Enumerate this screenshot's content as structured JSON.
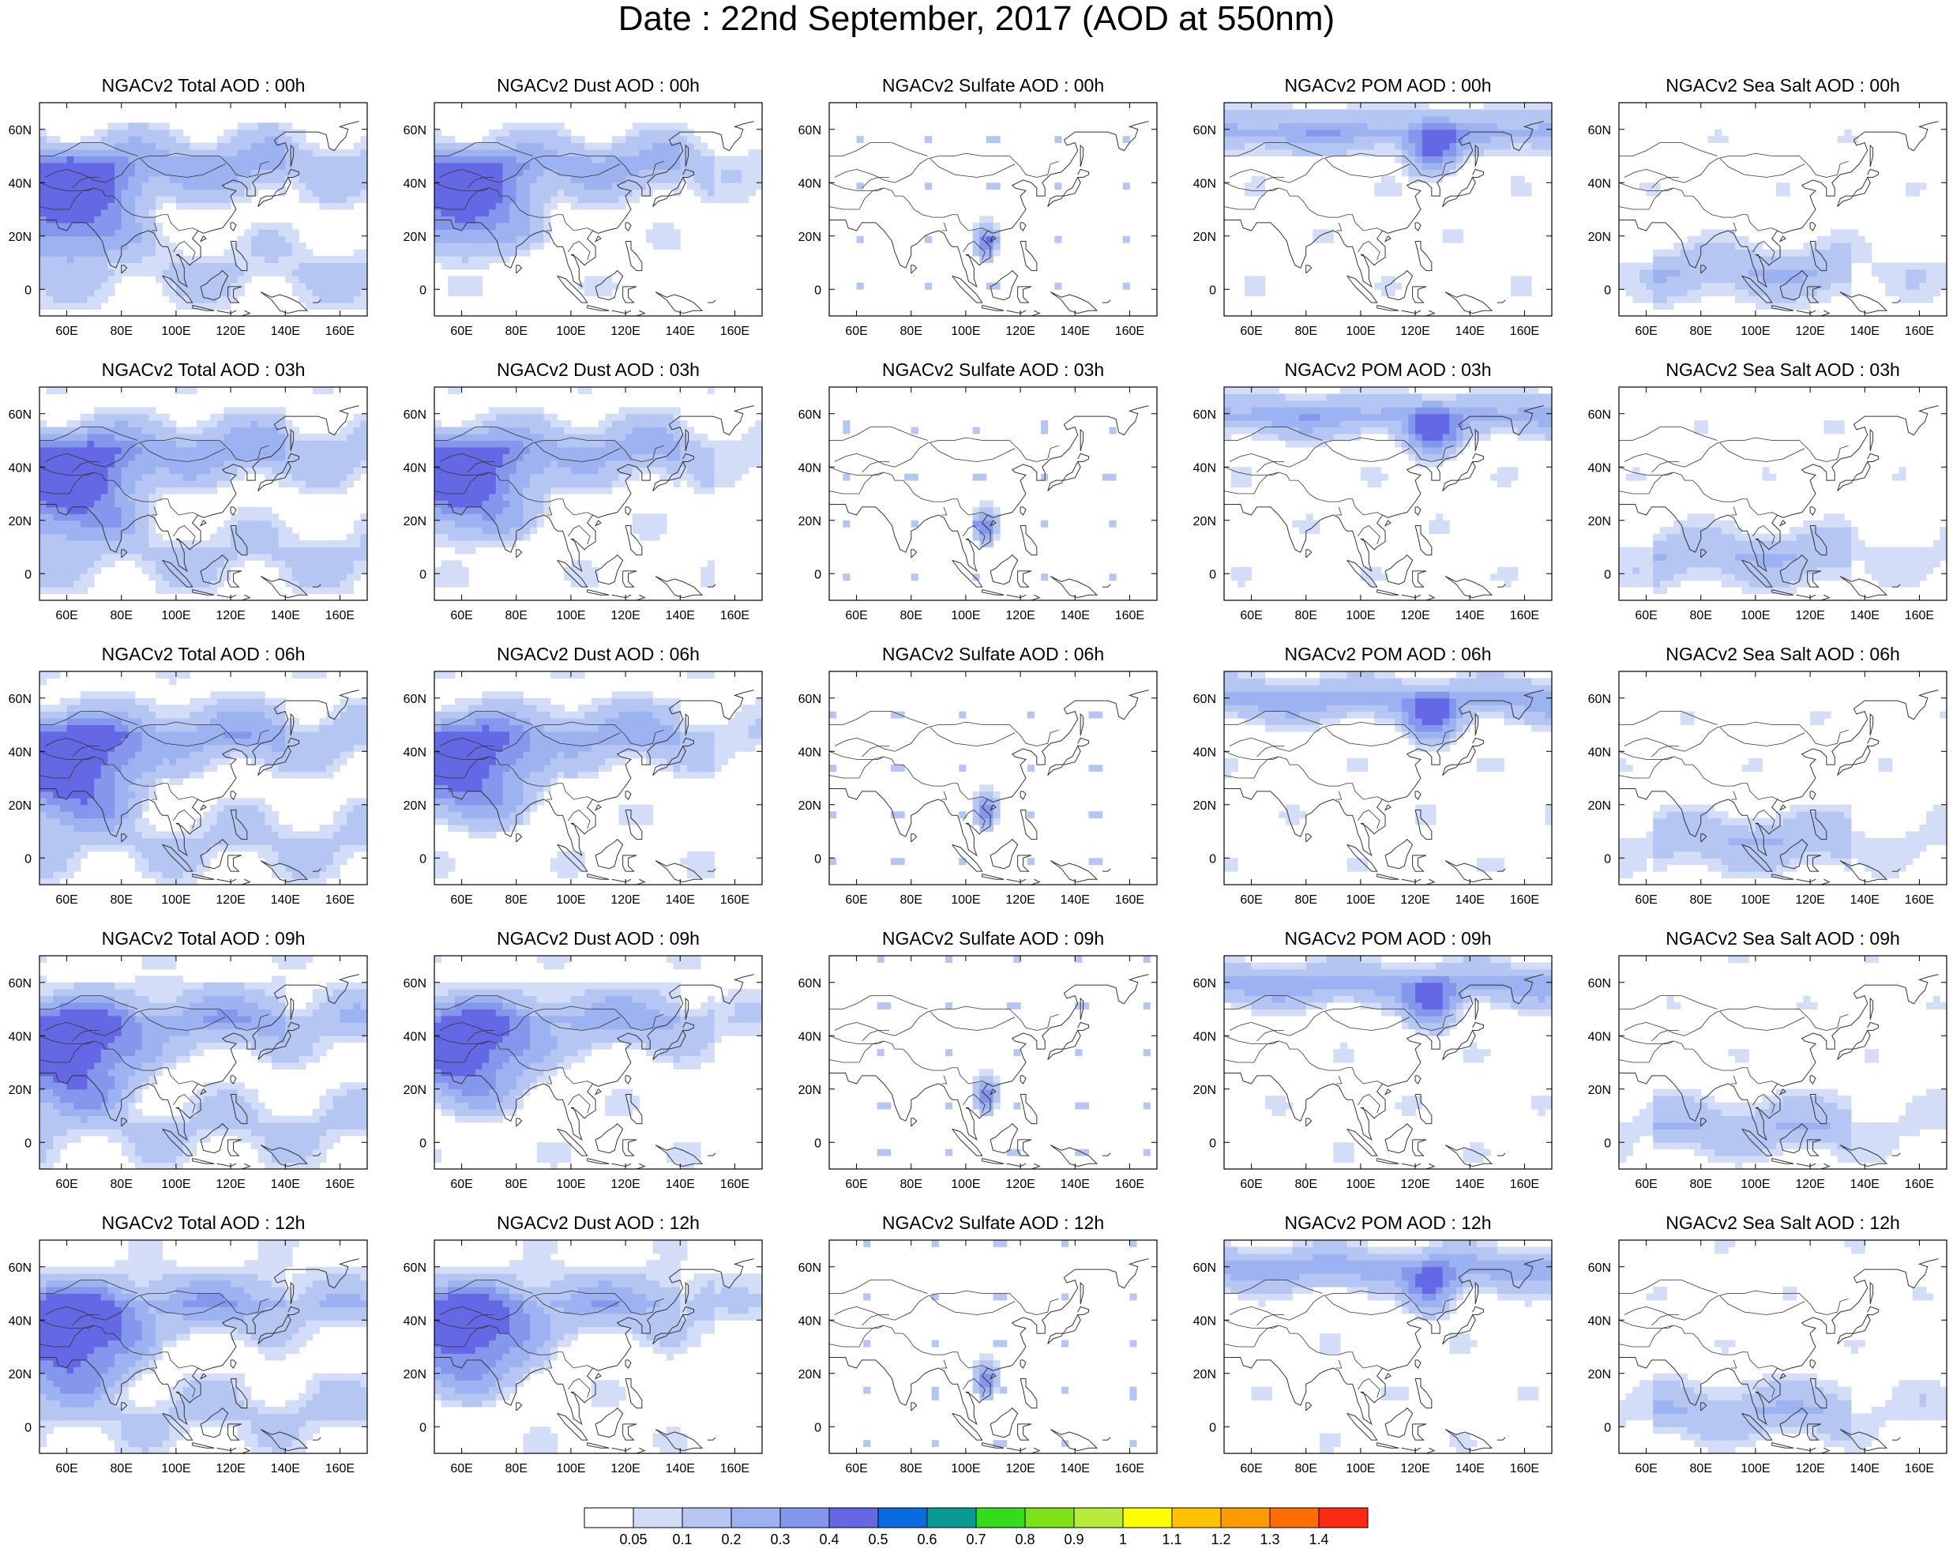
{
  "title": "Date : 22nd September, 2017 (AOD at 550nm)",
  "panel_titles": [
    [
      "NGACv2 Total AOD : 00h",
      "NGACv2 Dust AOD : 00h",
      "NGACv2 Sulfate AOD : 00h",
      "NGACv2 POM AOD : 00h",
      "NGACv2 Sea Salt AOD : 00h"
    ],
    [
      "NGACv2 Total AOD : 03h",
      "NGACv2 Dust AOD : 03h",
      "NGACv2 Sulfate AOD : 03h",
      "NGACv2 POM AOD : 03h",
      "NGACv2 Sea Salt AOD : 03h"
    ],
    [
      "NGACv2 Total AOD : 06h",
      "NGACv2 Dust AOD : 06h",
      "NGACv2 Sulfate AOD : 06h",
      "NGACv2 POM AOD : 06h",
      "NGACv2 Sea Salt AOD : 06h"
    ],
    [
      "NGACv2 Total AOD : 09h",
      "NGACv2 Dust AOD : 09h",
      "NGACv2 Sulfate AOD : 09h",
      "NGACv2 POM AOD : 09h",
      "NGACv2 Sea Salt  AOD : 09h"
    ],
    [
      "NGACv2 Total AOD  : 12h",
      "NGACv2 Dust AOD : 12h",
      "NGACv2 Sulfate AOD : 12h",
      "NGACv2 POM  AOD : 12h",
      "NGACv2 Sea Salt  AOD : 12h"
    ]
  ],
  "lon_ticks": [
    "60E",
    "80E",
    "100E",
    "120E",
    "140E",
    "160E"
  ],
  "lat_ticks": [
    "60N",
    "40N",
    "20N",
    "0"
  ],
  "lon_range": [
    50,
    170
  ],
  "lat_range": [
    -10,
    70
  ],
  "colorbar": {
    "labels": [
      "0.05",
      "0.1",
      "0.2",
      "0.3",
      "0.4",
      "0.5",
      "0.6",
      "0.7",
      "0.8",
      "0.9",
      "1",
      "1.1",
      "1.2",
      "1.3",
      "1.4"
    ],
    "colors": [
      "#ffffff",
      "#d3ddf7",
      "#b6c6f3",
      "#9db2f0",
      "#8497ec",
      "#6568e4",
      "#0a6ae0",
      "#089a93",
      "#33dc1c",
      "#7ee21a",
      "#b8ec3a",
      "#ffff00",
      "#ffc200",
      "#ff9a00",
      "#ff6c00",
      "#ff2a14"
    ]
  },
  "field_intensity": {
    "total": 0.55,
    "dust": 0.5,
    "sulfate": 0.15,
    "pom": 0.3,
    "seasalt": 0.22
  }
}
